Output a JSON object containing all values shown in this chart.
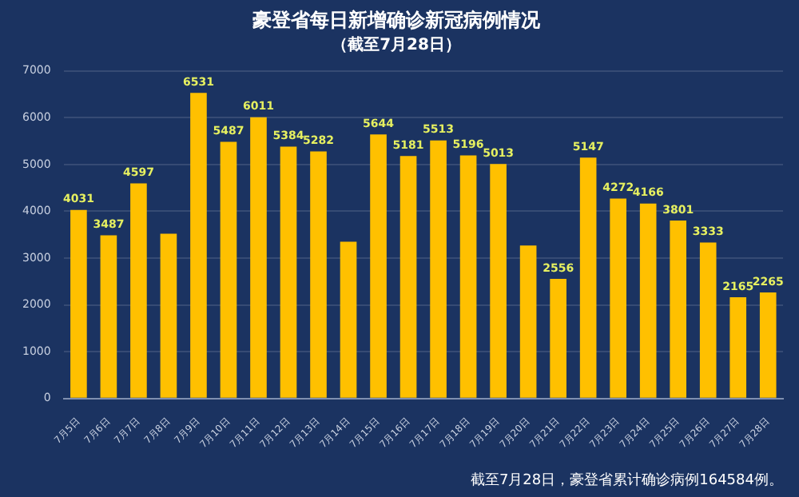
{
  "chart_data": {
    "type": "bar",
    "title": "豪登省每日新增确诊新冠病例情况",
    "subtitle": "（截至7月28日）",
    "categories": [
      "7月5日",
      "7月6日",
      "7月7日",
      "7月8日",
      "7月9日",
      "7月10日",
      "7月11日",
      "7月12日",
      "7月13日",
      "7月14日",
      "7月15日",
      "7月16日",
      "7月17日",
      "7月18日",
      "7月19日",
      "7月20日",
      "7月21日",
      "7月22日",
      "7月23日",
      "7月24日",
      "7月25日",
      "7月26日",
      "7月27日",
      "7月28日"
    ],
    "values": [
      4031,
      3487,
      4597,
      3520,
      6531,
      5487,
      6011,
      5384,
      5282,
      3350,
      5644,
      5181,
      5513,
      5196,
      5013,
      3270,
      2556,
      5147,
      4272,
      4166,
      3801,
      3333,
      2165,
      2265
    ],
    "value_labels": [
      "4031",
      "3487",
      "4597",
      null,
      "6531",
      "5487",
      "6011",
      "5384",
      "5282",
      null,
      "5644",
      "5181",
      "5513",
      "5196",
      "5013",
      null,
      "2556",
      "5147",
      "4272",
      "4166",
      "3801",
      "3333",
      "2165",
      "2265"
    ],
    "color": "#ffc000",
    "ylim": [
      0,
      7000
    ],
    "yticks": [
      0,
      1000,
      2000,
      3000,
      4000,
      5000,
      6000,
      7000
    ],
    "grid": "y",
    "legend": false,
    "annotations": [
      "截至7月28日，豪登省累计确诊病例164584例。"
    ]
  }
}
